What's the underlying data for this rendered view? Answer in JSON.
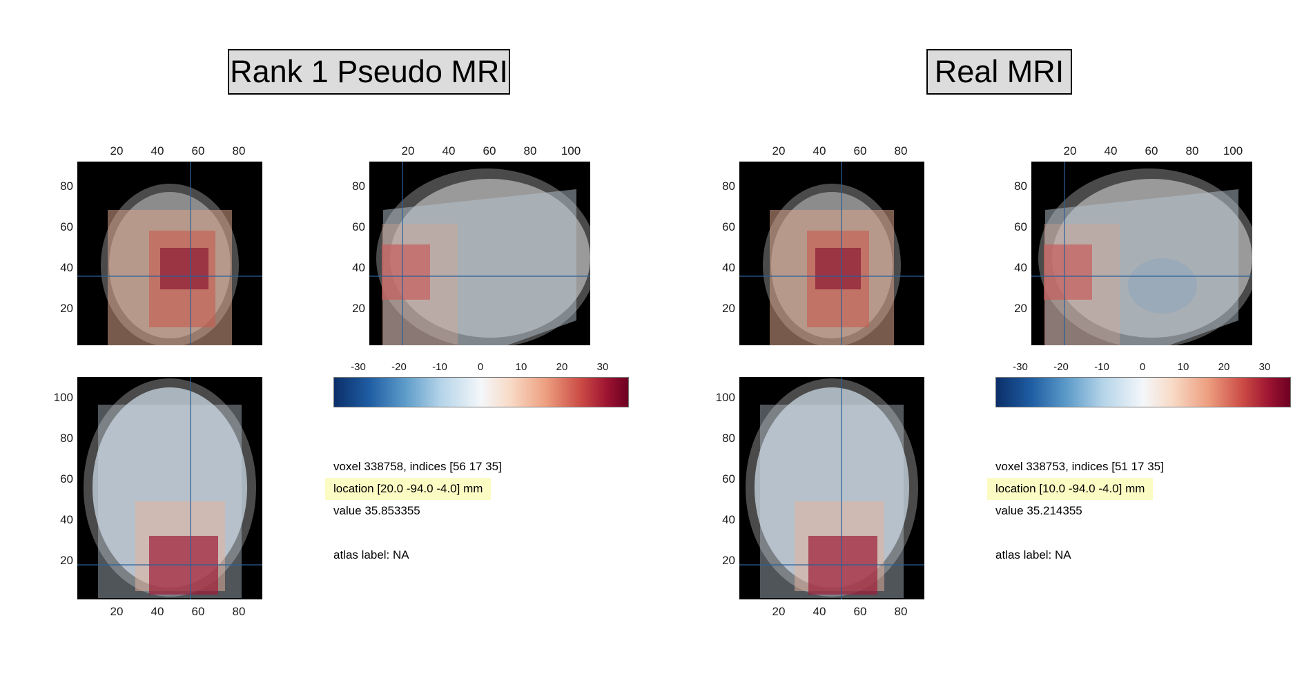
{
  "left": {
    "title": "Rank 1 Pseudo MRI",
    "voxel": "voxel 338758, indices [56 17 35]",
    "location": "location [20.0 -94.0 -4.0] mm",
    "value": "value 35.853355",
    "atlas": "atlas label: NA"
  },
  "right": {
    "title": "Real MRI",
    "voxel": "voxel 338753, indices [51 17 35]",
    "location": "location [10.0 -94.0 -4.0] mm",
    "value": "value 35.214355",
    "atlas": "atlas label: NA"
  },
  "ticks": {
    "coronal_x": [
      "20",
      "40",
      "60",
      "80"
    ],
    "coronal_y": [
      "80",
      "60",
      "40",
      "20"
    ],
    "sagittal_x": [
      "20",
      "40",
      "60",
      "80",
      "100"
    ],
    "sagittal_y": [
      "80",
      "60",
      "40",
      "20"
    ],
    "axial_x": [
      "20",
      "40",
      "60",
      "80"
    ],
    "axial_y": [
      "100",
      "80",
      "60",
      "40",
      "20"
    ],
    "colorbar": [
      "-30",
      "-20",
      "-10",
      "0",
      "10",
      "20",
      "30"
    ]
  },
  "colors": {
    "crosshair": "#2a5f98",
    "highlight": "#fbfbc4",
    "title_bg": "#dcdcdc"
  }
}
